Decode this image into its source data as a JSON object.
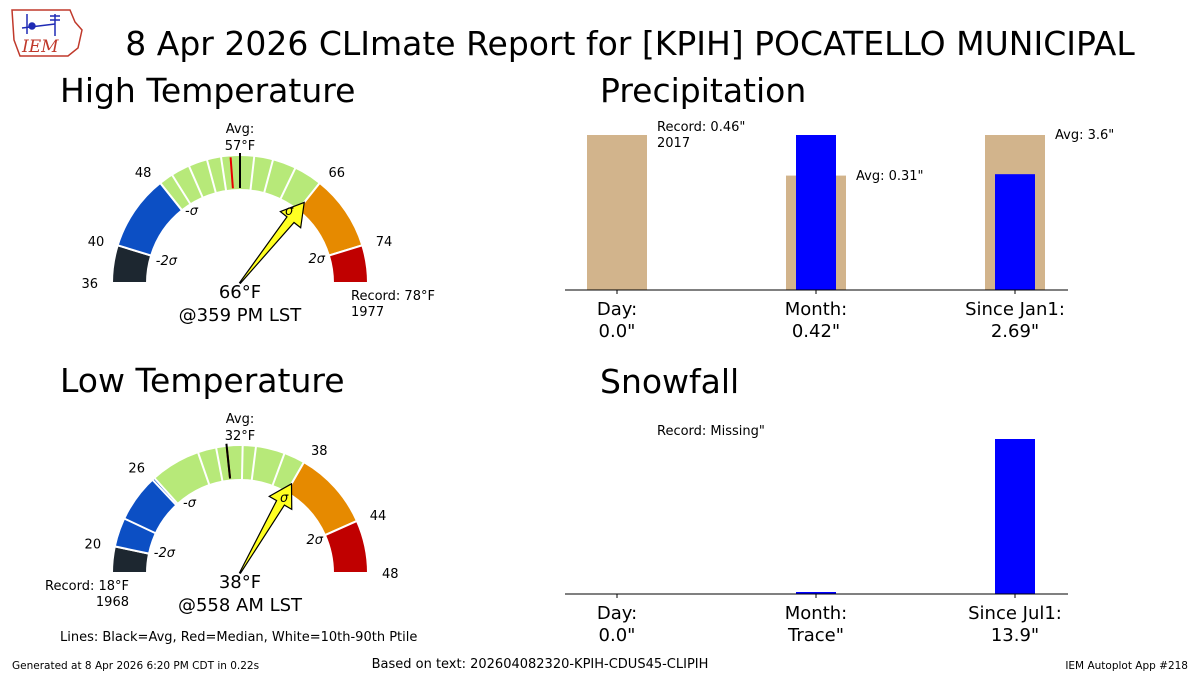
{
  "title": "8 Apr 2026 CLImate Report for [KPIH] POCATELLO MUNICIPAL",
  "logo_text": "IEM",
  "footer": {
    "generated": "Generated at 8 Apr 2026 6:20 PM CDT in 0.22s",
    "based_on": "Based on text: 202604082320-KPIH-CDUS45-CLIPIH",
    "app": "IEM Autoplot App #218"
  },
  "legend_note": "Lines: Black=Avg, Red=Median, White=10th-90th Ptile",
  "colors": {
    "below_2sigma": "#1d2730",
    "below_1sigma": "#0c4fc4",
    "normal": "#b7e979",
    "above_1sigma": "#e68a00",
    "above_2sigma": "#c00000",
    "needle": "#ffff22",
    "bar_avg_record": "#d2b48c",
    "bar_obs": "#0000ff"
  },
  "chart_data": [
    {
      "type": "gauge",
      "title": "High Temperature",
      "range": [
        36,
        78
      ],
      "avg_label": "Avg:",
      "avg_value": "57°F",
      "avg": 57,
      "median": 56,
      "obs": 66,
      "obs_label": "66°F",
      "time_label": "@359 PM LST",
      "record_label": "Record: 78°F",
      "record_year": "1977",
      "ticks": [
        "36",
        "40",
        "48",
        "66",
        "74"
      ],
      "tick_values": [
        36,
        40,
        48,
        66,
        74
      ],
      "sigma_labels": [
        "-2σ",
        "-σ",
        "σ",
        "2σ"
      ],
      "bands": [
        {
          "from": 36,
          "to": 40,
          "color": "below_2sigma"
        },
        {
          "from": 40,
          "to": 48,
          "color": "below_1sigma"
        },
        {
          "from": 48,
          "to": 66,
          "color": "normal"
        },
        {
          "from": 66,
          "to": 74,
          "color": "above_1sigma"
        },
        {
          "from": 74,
          "to": 78,
          "color": "above_2sigma"
        }
      ],
      "percentile_lines": [
        49.5,
        51.5,
        53.5,
        55.0,
        58.5,
        60.5,
        63.0
      ]
    },
    {
      "type": "gauge",
      "title": "Low Temperature",
      "range": [
        18,
        48
      ],
      "avg_label": "Avg:",
      "avg_value": "32°F",
      "avg": 32,
      "median": 32,
      "obs": 38,
      "obs_label": "38°F",
      "time_label": "@558 AM LST",
      "record_label": "Record: 18°F",
      "record_year": "1968",
      "ticks": [
        "20",
        "26",
        "38",
        "44",
        "48"
      ],
      "tick_values": [
        20,
        26,
        38,
        44,
        48
      ],
      "sigma_labels": [
        "-2σ",
        "-σ",
        "σ",
        "2σ"
      ],
      "bands": [
        {
          "from": 18,
          "to": 20,
          "color": "below_2sigma"
        },
        {
          "from": 20,
          "to": 26,
          "color": "below_1sigma"
        },
        {
          "from": 26,
          "to": 38,
          "color": "normal"
        },
        {
          "from": 38,
          "to": 44,
          "color": "above_1sigma"
        },
        {
          "from": 44,
          "to": 48,
          "color": "above_2sigma"
        }
      ],
      "percentile_lines": [
        22.2,
        25.8,
        29.8,
        31.2,
        33.2,
        34.2,
        36.4
      ]
    },
    {
      "type": "bar",
      "title": "Precipitation",
      "categories": [
        "Day:",
        "Month:",
        "Since Jan1:"
      ],
      "value_labels": [
        "0.0\"",
        "0.42\"",
        "2.69\""
      ],
      "series": [
        {
          "name": "Avg/Record",
          "values": [
            0.46,
            0.31,
            3.6
          ]
        },
        {
          "name": "Observed",
          "values": [
            0.0,
            0.42,
            2.69
          ]
        }
      ],
      "annotations": [
        "Record: 0.46\"",
        "2017",
        "Avg: 0.31\"",
        "Avg: 3.6\""
      ]
    },
    {
      "type": "bar",
      "title": "Snowfall",
      "categories": [
        "Day:",
        "Month:",
        "Since Jul1:"
      ],
      "value_labels": [
        "0.0\"",
        "Trace\"",
        "13.9\""
      ],
      "series": [
        {
          "name": "Observed",
          "values": [
            0.0,
            0.0001,
            13.9
          ]
        }
      ],
      "annotations": [
        "Record: Missing\""
      ]
    }
  ]
}
